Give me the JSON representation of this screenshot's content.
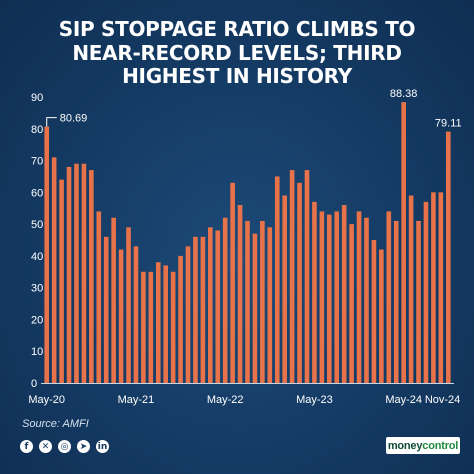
{
  "title_lines": [
    "SIP STOPPAGE RATIO CLIMBS TO",
    "NEAR-RECORD LEVELS; THIRD",
    "HIGHEST IN HISTORY"
  ],
  "source": "Source: AMFI",
  "brand": {
    "part1": "money",
    "part2": "control"
  },
  "social_icons": [
    "facebook-icon",
    "x-icon",
    "instagram-icon",
    "telegram-icon",
    "linkedin-icon"
  ],
  "colors": {
    "bar": "#e8734a",
    "background": "#143a63",
    "text": "#ffffff"
  },
  "chart_data": {
    "type": "bar",
    "title": "SIP STOPPAGE RATIO CLIMBS TO NEAR-RECORD LEVELS; THIRD HIGHEST IN HISTORY",
    "xlabel": "",
    "ylabel": "",
    "ylim": [
      0,
      90
    ],
    "yticks": [
      0,
      10,
      20,
      30,
      40,
      50,
      60,
      70,
      80,
      90
    ],
    "xtick_labels": [
      "May-20",
      "May-21",
      "May-22",
      "May-23",
      "May-24",
      "Nov-24"
    ],
    "xtick_positions": [
      "May-20",
      "May-21",
      "May-22",
      "May-23",
      "May-24",
      "Nov-24"
    ],
    "grid": false,
    "categories": [
      "May-20",
      "Jun-20",
      "Jul-20",
      "Aug-20",
      "Sep-20",
      "Oct-20",
      "Nov-20",
      "Dec-20",
      "Jan-21",
      "Feb-21",
      "Mar-21",
      "Apr-21",
      "May-21",
      "Jun-21",
      "Jul-21",
      "Aug-21",
      "Sep-21",
      "Oct-21",
      "Nov-21",
      "Dec-21",
      "Jan-22",
      "Feb-22",
      "Mar-22",
      "Apr-22",
      "May-22",
      "Jun-22",
      "Jul-22",
      "Aug-22",
      "Sep-22",
      "Oct-22",
      "Nov-22",
      "Dec-22",
      "Jan-23",
      "Feb-23",
      "Mar-23",
      "Apr-23",
      "May-23",
      "Jun-23",
      "Jul-23",
      "Aug-23",
      "Sep-23",
      "Oct-23",
      "Nov-23",
      "Dec-23",
      "Jan-24",
      "Feb-24",
      "Mar-24",
      "Apr-24",
      "May-24",
      "Jun-24",
      "Jul-24",
      "Aug-24",
      "Sep-24",
      "Oct-24",
      "Nov-24"
    ],
    "values": [
      80.69,
      71,
      64,
      68,
      69,
      69,
      67,
      54,
      46,
      52,
      42,
      49,
      43,
      35,
      35,
      38,
      37,
      35,
      40,
      43,
      46,
      46,
      49,
      48,
      52,
      63,
      56,
      51,
      47,
      51,
      49,
      65,
      59,
      67,
      63,
      67,
      57,
      54,
      53,
      54,
      56,
      50,
      54,
      52,
      45,
      42,
      54,
      51,
      88.38,
      59,
      51,
      57,
      60,
      60,
      79.11
    ],
    "annotations": [
      {
        "category": "May-20",
        "label": "80.69"
      },
      {
        "category": "May-24",
        "label": "88.38"
      },
      {
        "category": "Nov-24",
        "label": "79.11"
      }
    ]
  }
}
